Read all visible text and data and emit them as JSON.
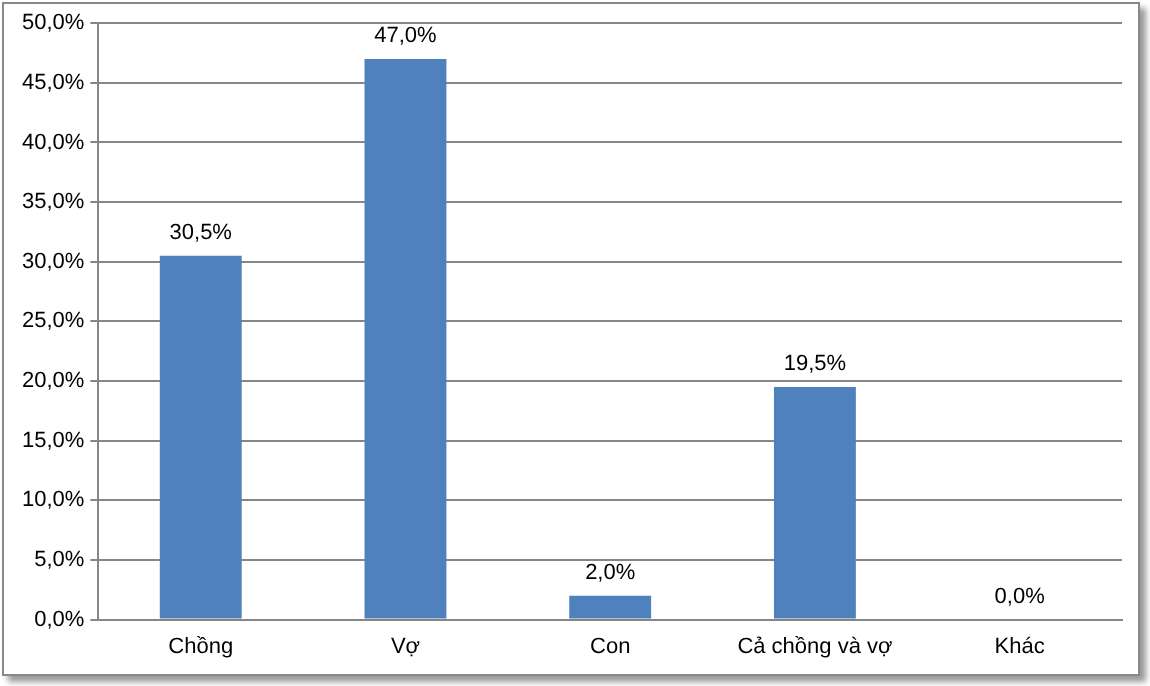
{
  "chart_data": {
    "type": "bar",
    "categories": [
      "Chồng",
      "Vợ",
      "Con",
      "Cả chồng và vợ",
      "Khác"
    ],
    "values": [
      30.5,
      47.0,
      2.0,
      19.5,
      0.0
    ],
    "color": "#4f81bd",
    "value_labels": [
      "30,5%",
      "47,0%",
      "2,0%",
      "19,5%",
      "0,0%"
    ],
    "ylim": [
      0,
      50
    ],
    "yticks": [
      {
        "value": 0,
        "label": "0,0%"
      },
      {
        "value": 5,
        "label": "5,0%"
      },
      {
        "value": 10,
        "label": "10,0%"
      },
      {
        "value": 15,
        "label": "15,0%"
      },
      {
        "value": 20,
        "label": "20,0%"
      },
      {
        "value": 25,
        "label": "25,0%"
      },
      {
        "value": 30,
        "label": "30,0%"
      },
      {
        "value": 35,
        "label": "35,0%"
      },
      {
        "value": 40,
        "label": "40,0%"
      },
      {
        "value": 45,
        "label": "45,0%"
      },
      {
        "value": 50,
        "label": "50,0%"
      }
    ],
    "grid": "y",
    "legend": false
  }
}
